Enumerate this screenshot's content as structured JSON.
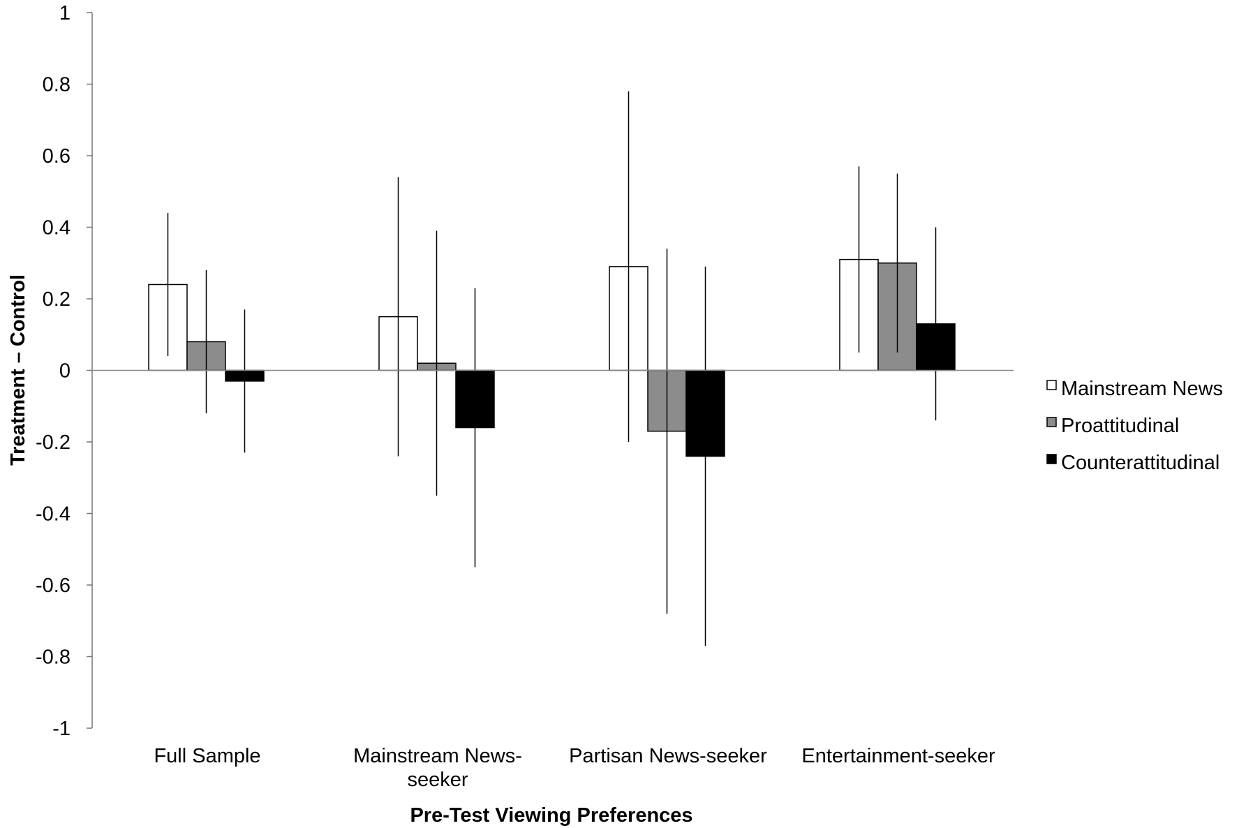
{
  "chart_data": {
    "type": "bar",
    "title": "",
    "xlabel": "Pre-Test Viewing Preferences",
    "ylabel": "Treatment – Control",
    "ylim": [
      -1,
      1
    ],
    "yticks": [
      1,
      0.8,
      0.6,
      0.4,
      0.2,
      0,
      -0.2,
      -0.4,
      -0.6,
      -0.8,
      -1
    ],
    "ytick_labels": [
      "1",
      "0.8",
      "0.6",
      "0.4",
      "0.2",
      "0",
      "-0.2",
      "-0.4",
      "-0.6",
      "-0.8",
      "-1"
    ],
    "grid": false,
    "legend_position": "right",
    "categories": [
      [
        "Full Sample"
      ],
      [
        "Mainstream News-",
        "seeker"
      ],
      [
        "Partisan News-seeker"
      ],
      [
        "Entertainment-seeker"
      ]
    ],
    "series": [
      {
        "name": "Mainstream News",
        "color": "#ffffff",
        "values": [
          0.24,
          0.15,
          0.29,
          0.31
        ],
        "ci_low": [
          0.04,
          -0.24,
          -0.2,
          0.05
        ],
        "ci_high": [
          0.44,
          0.54,
          0.78,
          0.57
        ]
      },
      {
        "name": "Proattitudinal",
        "color": "#8c8c8c",
        "values": [
          0.08,
          0.02,
          -0.17,
          0.3
        ],
        "ci_low": [
          -0.12,
          -0.35,
          -0.68,
          0.05
        ],
        "ci_high": [
          0.28,
          0.39,
          0.34,
          0.55
        ]
      },
      {
        "name": "Counterattitudinal",
        "color": "#000000",
        "values": [
          -0.03,
          -0.16,
          -0.24,
          0.13
        ],
        "ci_low": [
          -0.23,
          -0.55,
          -0.77,
          -0.14
        ],
        "ci_high": [
          0.17,
          0.23,
          0.29,
          0.4
        ]
      }
    ]
  }
}
